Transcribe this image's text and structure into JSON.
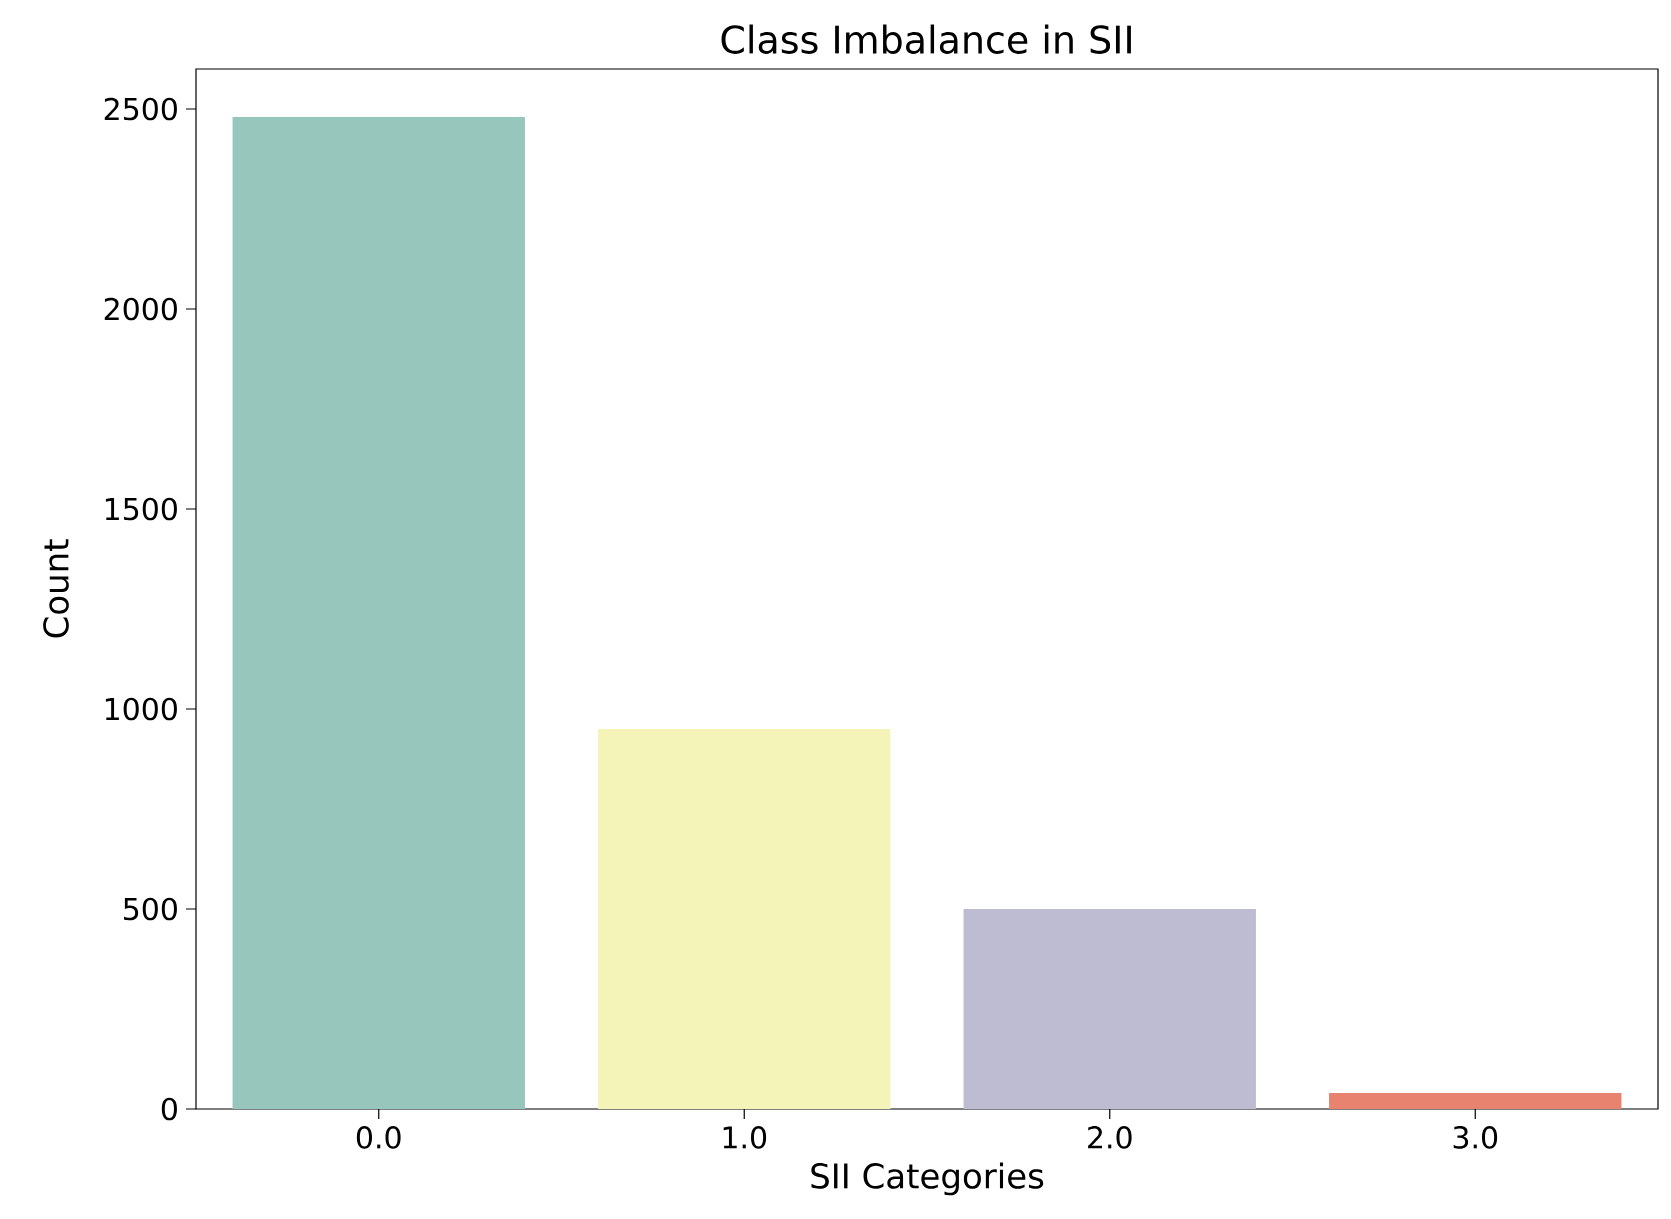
{
  "chart_data": {
    "type": "bar",
    "title": "Class Imbalance in SII",
    "xlabel": "SII Categories",
    "ylabel": "Count",
    "categories": [
      "0.0",
      "1.0",
      "2.0",
      "3.0"
    ],
    "values": [
      2480,
      950,
      500,
      40
    ],
    "colors": [
      "#97c6bc",
      "#f4f4b8",
      "#bdbcd3",
      "#e8836f"
    ],
    "ylim": [
      0,
      2600
    ],
    "yticks": [
      0,
      500,
      1000,
      1500,
      2000,
      2500
    ]
  }
}
